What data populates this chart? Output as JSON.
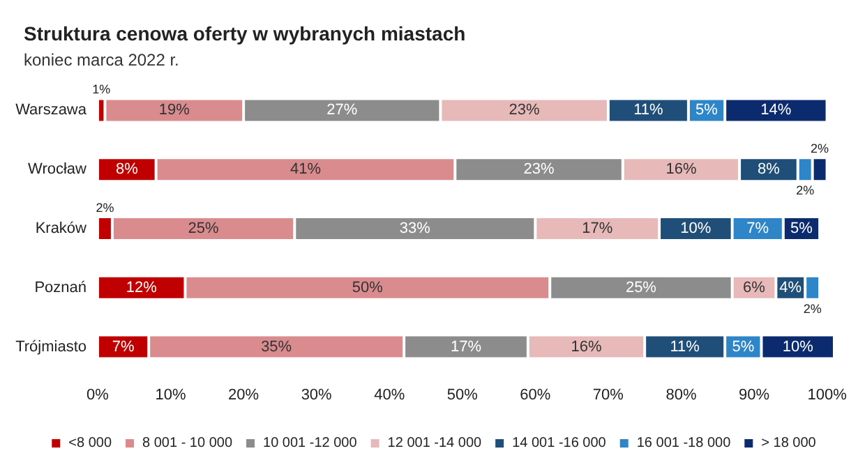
{
  "chart_data": {
    "type": "bar",
    "orientation": "horizontal",
    "stacked": true,
    "title": "Struktura cenowa oferty w wybranych miastach",
    "subtitle": "koniec marca 2022 r.",
    "categories": [
      "Warszawa",
      "Wrocław",
      "Kraków",
      "Poznań",
      "Trójmiasto"
    ],
    "series": [
      {
        "name": "<8 000",
        "color": "#c00000",
        "values": [
          1,
          8,
          2,
          12,
          7
        ],
        "value_labels": [
          "1%",
          "8%",
          "2%",
          "12%",
          "7%"
        ]
      },
      {
        "name": "8 001 - 10 000",
        "color": "#d98b8e",
        "values": [
          19,
          41,
          25,
          50,
          35
        ],
        "value_labels": [
          "19%",
          "41%",
          "25%",
          "50%",
          "35%"
        ]
      },
      {
        "name": "10 001 -12 000",
        "color": "#8c8c8c",
        "values": [
          27,
          23,
          33,
          25,
          17
        ],
        "value_labels": [
          "27%",
          "23%",
          "33%",
          "25%",
          "17%"
        ]
      },
      {
        "name": "12 001 -14 000",
        "color": "#e8b9b9",
        "values": [
          23,
          16,
          17,
          6,
          16
        ],
        "value_labels": [
          "23%",
          "16%",
          "17%",
          "6%",
          "16%"
        ]
      },
      {
        "name": "14 001 -16 000",
        "color": "#1f4e79",
        "values": [
          11,
          8,
          10,
          4,
          11
        ],
        "value_labels": [
          "11%",
          "8%",
          "10%",
          "4%",
          "11%"
        ]
      },
      {
        "name": "16 001 -18 000",
        "color": "#2e86c8",
        "values": [
          5,
          2,
          7,
          2,
          5
        ],
        "value_labels": [
          "5%",
          "2%",
          "7%",
          "2%",
          "5%"
        ]
      },
      {
        "name": "> 18 000",
        "color": "#0c2a6e",
        "values": [
          14,
          2,
          5,
          null,
          10
        ],
        "value_labels": [
          "14%",
          "2%",
          "5%",
          null,
          "10%"
        ]
      }
    ],
    "xlim": [
      0,
      101
    ],
    "xticks": [
      {
        "value": 0,
        "label": "0%"
      },
      {
        "value": 10,
        "label": "10%"
      },
      {
        "value": 20,
        "label": "20%"
      },
      {
        "value": 30,
        "label": "30%"
      },
      {
        "value": 40,
        "label": "40%"
      },
      {
        "value": 50,
        "label": "50%"
      },
      {
        "value": 60,
        "label": "60%"
      },
      {
        "value": 70,
        "label": "70%"
      },
      {
        "value": 80,
        "label": "80%"
      },
      {
        "value": 90,
        "label": "90%"
      },
      {
        "value": 100,
        "label": "100%"
      }
    ],
    "legend": "bottom",
    "grid": false
  }
}
